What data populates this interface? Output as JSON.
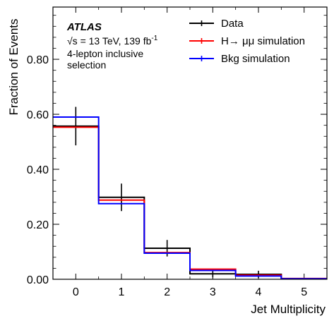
{
  "chart_data": {
    "type": "histogram",
    "xlabel": "Jet Multiplicity",
    "ylabel": "Fraction of Events",
    "xlim": [
      -0.5,
      5.5
    ],
    "ylim": [
      0,
      0.99
    ],
    "xticks": [
      0,
      1,
      2,
      3,
      4,
      5
    ],
    "x_tick_labels": [
      "0",
      "1",
      "2",
      "3",
      "4",
      "5"
    ],
    "yticks": [
      0,
      0.2,
      0.4,
      0.6,
      0.8
    ],
    "y_tick_labels": [
      "0.00",
      "0.20",
      "0.40",
      "0.60",
      "0.80"
    ],
    "bin_edges": [
      -0.5,
      0.5,
      1.5,
      2.5,
      3.5,
      4.5,
      5.5
    ],
    "series": [
      {
        "name": "Data",
        "color": "#000000",
        "values": [
          0.557,
          0.298,
          0.113,
          0.02,
          0.018,
          0.002
        ],
        "errors": [
          0.07,
          0.05,
          0.03,
          0.013,
          0.013,
          0.002
        ]
      },
      {
        "name": "H→ μμ simulation",
        "color": "#ff0000",
        "values": [
          0.553,
          0.288,
          0.097,
          0.037,
          0.015,
          0.003
        ]
      },
      {
        "name": "Bkg simulation",
        "color": "#0000ff",
        "values": [
          0.59,
          0.275,
          0.095,
          0.032,
          0.012,
          0.002
        ]
      }
    ],
    "annotations": {
      "experiment": "ATLAS",
      "sqrt_s": "√s = 13 TeV, 139 fb",
      "lumi_exponent": "-1",
      "selection_line1": "4-lepton inclusive",
      "selection_line2": "selection"
    },
    "legend_position": "top-right",
    "grid": false
  }
}
